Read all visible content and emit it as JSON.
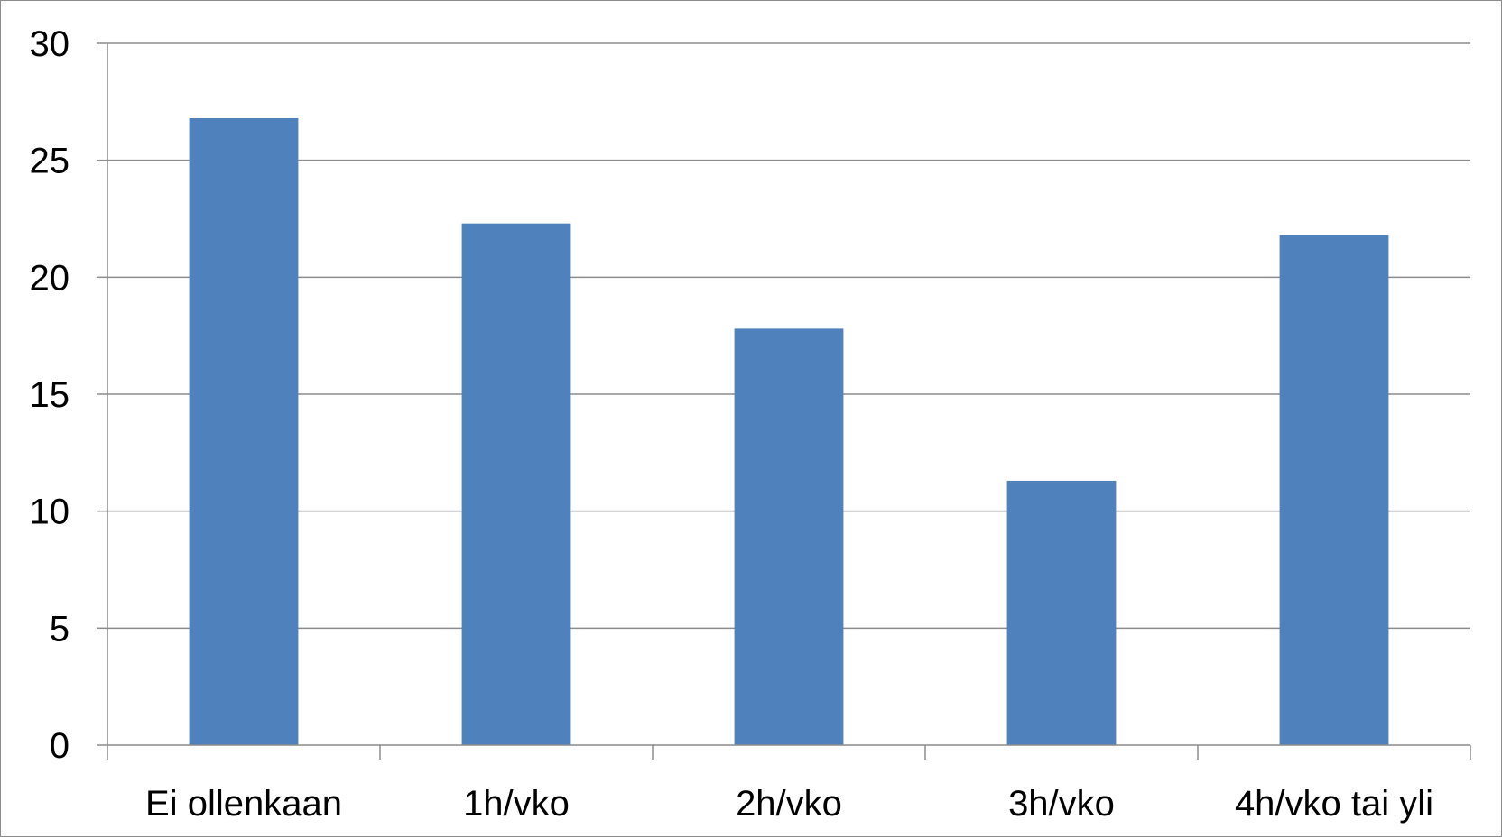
{
  "chart_data": {
    "type": "bar",
    "title": "",
    "xlabel": "",
    "ylabel": "",
    "categories": [
      "Ei ollenkaan",
      "1h/vko",
      "2h/vko",
      "3h/vko",
      "4h/vko tai yli"
    ],
    "values": [
      26.8,
      22.3,
      17.8,
      11.3,
      21.8
    ],
    "ylim": [
      0,
      30
    ],
    "yticks": [
      "0",
      "5",
      "10",
      "15",
      "20",
      "25",
      "30"
    ],
    "grid": true,
    "legend": "none",
    "bar_color": "#4f81bd",
    "grid_color": "#8c8c8c"
  }
}
